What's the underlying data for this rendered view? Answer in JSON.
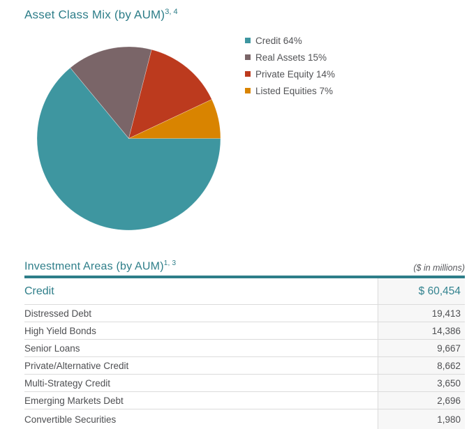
{
  "asset_mix": {
    "title": "Asset Class Mix (by AUM)",
    "title_sup": "3, 4"
  },
  "investment_areas": {
    "title": "Investment Areas (by AUM)",
    "title_sup": "1, 3",
    "units_note": "($ in millions)",
    "group_row": {
      "label": "Credit",
      "value": "$ 60,454"
    },
    "rows": [
      {
        "label": "Distressed Debt",
        "value": "19,413"
      },
      {
        "label": "High Yield Bonds",
        "value": "14,386"
      },
      {
        "label": "Senior Loans",
        "value": "9,667"
      },
      {
        "label": "Private/Alternative Credit",
        "value": "8,662"
      },
      {
        "label": "Multi-Strategy Credit",
        "value": "3,650"
      },
      {
        "label": "Emerging Markets Debt",
        "value": "2,696"
      },
      {
        "label": "Convertible Securities",
        "value": "1,980"
      }
    ]
  },
  "chart_data": {
    "type": "pie",
    "title": "Asset Class Mix (by AUM)",
    "title_footnote": "3, 4",
    "slices": [
      {
        "label": "Credit",
        "percent": 64,
        "color": "#3E96A0"
      },
      {
        "label": "Real Assets",
        "percent": 15,
        "color": "#7A6568"
      },
      {
        "label": "Private Equity",
        "percent": 14,
        "color": "#BC3A1E"
      },
      {
        "label": "Listed Equities",
        "percent": 7,
        "color": "#D98400"
      }
    ],
    "legend_labels": [
      "Credit 64%",
      "Real Assets 15%",
      "Private Equity 14%",
      "Listed Equities 7%"
    ],
    "legend_position": "right",
    "start_angle_clockwise_from_12": 90,
    "direction": "clockwise"
  },
  "colors": {
    "accent_teal": "#2E7E89",
    "value_column_bg": "#F7F7F7",
    "row_border": "#DBDBDB",
    "body_text": "#4E4F52"
  }
}
